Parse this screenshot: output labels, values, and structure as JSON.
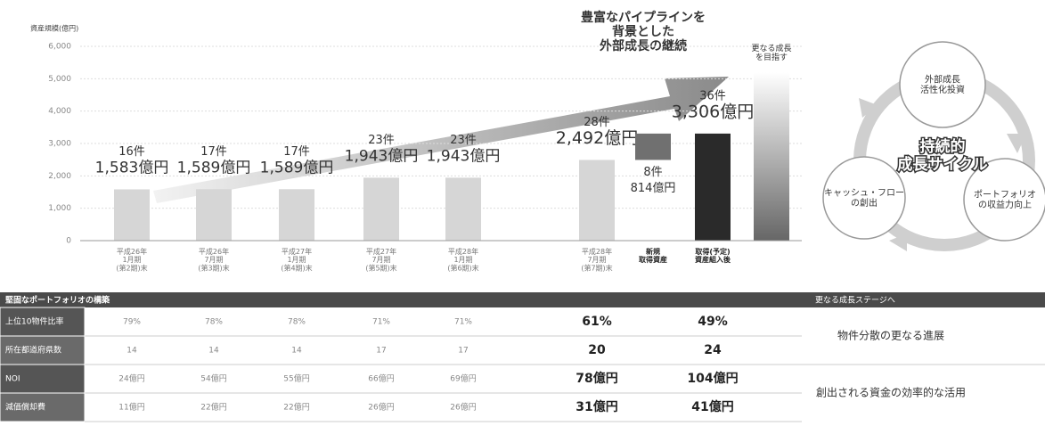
{
  "chart_data": {
    "type": "bar",
    "y_axis_label": "資産規模(億円)",
    "categories": [
      "平成26年\n1月期\n(第2期)末",
      "平成26年\n7月期\n(第3期)末",
      "平成27年\n1月期\n(第4期)末",
      "平成27年\n7月期\n(第5期)末",
      "平成28年\n1月期\n(第6期)末",
      "平成28年\n7月期\n(第7期)末",
      "新規\n取得資産",
      "取得(予定)\n資産組入後",
      null
    ],
    "values": [
      1583,
      1589,
      1589,
      1943,
      1943,
      2492,
      814,
      3306,
      5200
    ],
    "value_labels": [
      "1,583億円",
      "1,589億円",
      "1,589億円",
      "1,943億円",
      "1,943億円",
      "2,492億円",
      "814億円",
      "3,306億円",
      null
    ],
    "count_labels": [
      "16件",
      "17件",
      "17件",
      "23件",
      "23件",
      "28件",
      "8件",
      "36件",
      null
    ],
    "colors": [
      "#d6d6d6",
      "#d6d6d6",
      "#d6d6d6",
      "#d6d6d6",
      "#d6d6d6",
      "#d6d6d6",
      "#707070",
      "#2a2a2a",
      "#666666"
    ],
    "ylim": [
      0,
      6000
    ],
    "yticks": [
      0,
      {
        "value": 1000,
        "label": "1,000"
      },
      {
        "value": 2000,
        "label": "2,000"
      },
      {
        "value": 3000,
        "label": "3,000"
      },
      {
        "value": 4000,
        "label": "4,000"
      },
      {
        "value": 5000,
        "label": "5,000"
      },
      {
        "value": 6000,
        "label": "6,000"
      }
    ],
    "grid": true,
    "annotations": [
      "豊富なパイプラインを\n背景とした\n外部成長の継続",
      "更なる成長\nを目指す"
    ]
  },
  "cycle": {
    "center": "持続的\n成長サイクル",
    "nodes": [
      "外部成長\n活性化投資",
      "キャッシュ・フロー\nの創出",
      "ポートフォリオ\nの収益力向上"
    ]
  },
  "table": {
    "title": "堅固なポートフォリオの構築",
    "side_title": "更なる成長ステージへ",
    "rows": [
      {
        "label": "上位10物件比率",
        "values": [
          "79%",
          "78%",
          "78%",
          "71%",
          "71%",
          "61%",
          "49%"
        ]
      },
      {
        "label": "所在都道府県数",
        "values": [
          "14",
          "14",
          "14",
          "17",
          "17",
          "20",
          "24"
        ]
      },
      {
        "label": "NOI",
        "values": [
          "24億円",
          "54億円",
          "55億円",
          "66億円",
          "69億円",
          "78億円",
          "104億円"
        ]
      },
      {
        "label": "減価償却費",
        "values": [
          "11億円",
          "22億円",
          "22億円",
          "26億円",
          "26億円",
          "31億円",
          "41億円"
        ]
      }
    ],
    "notes": [
      "物件分散の更なる進展",
      "創出される資金の効率的な活用"
    ]
  }
}
